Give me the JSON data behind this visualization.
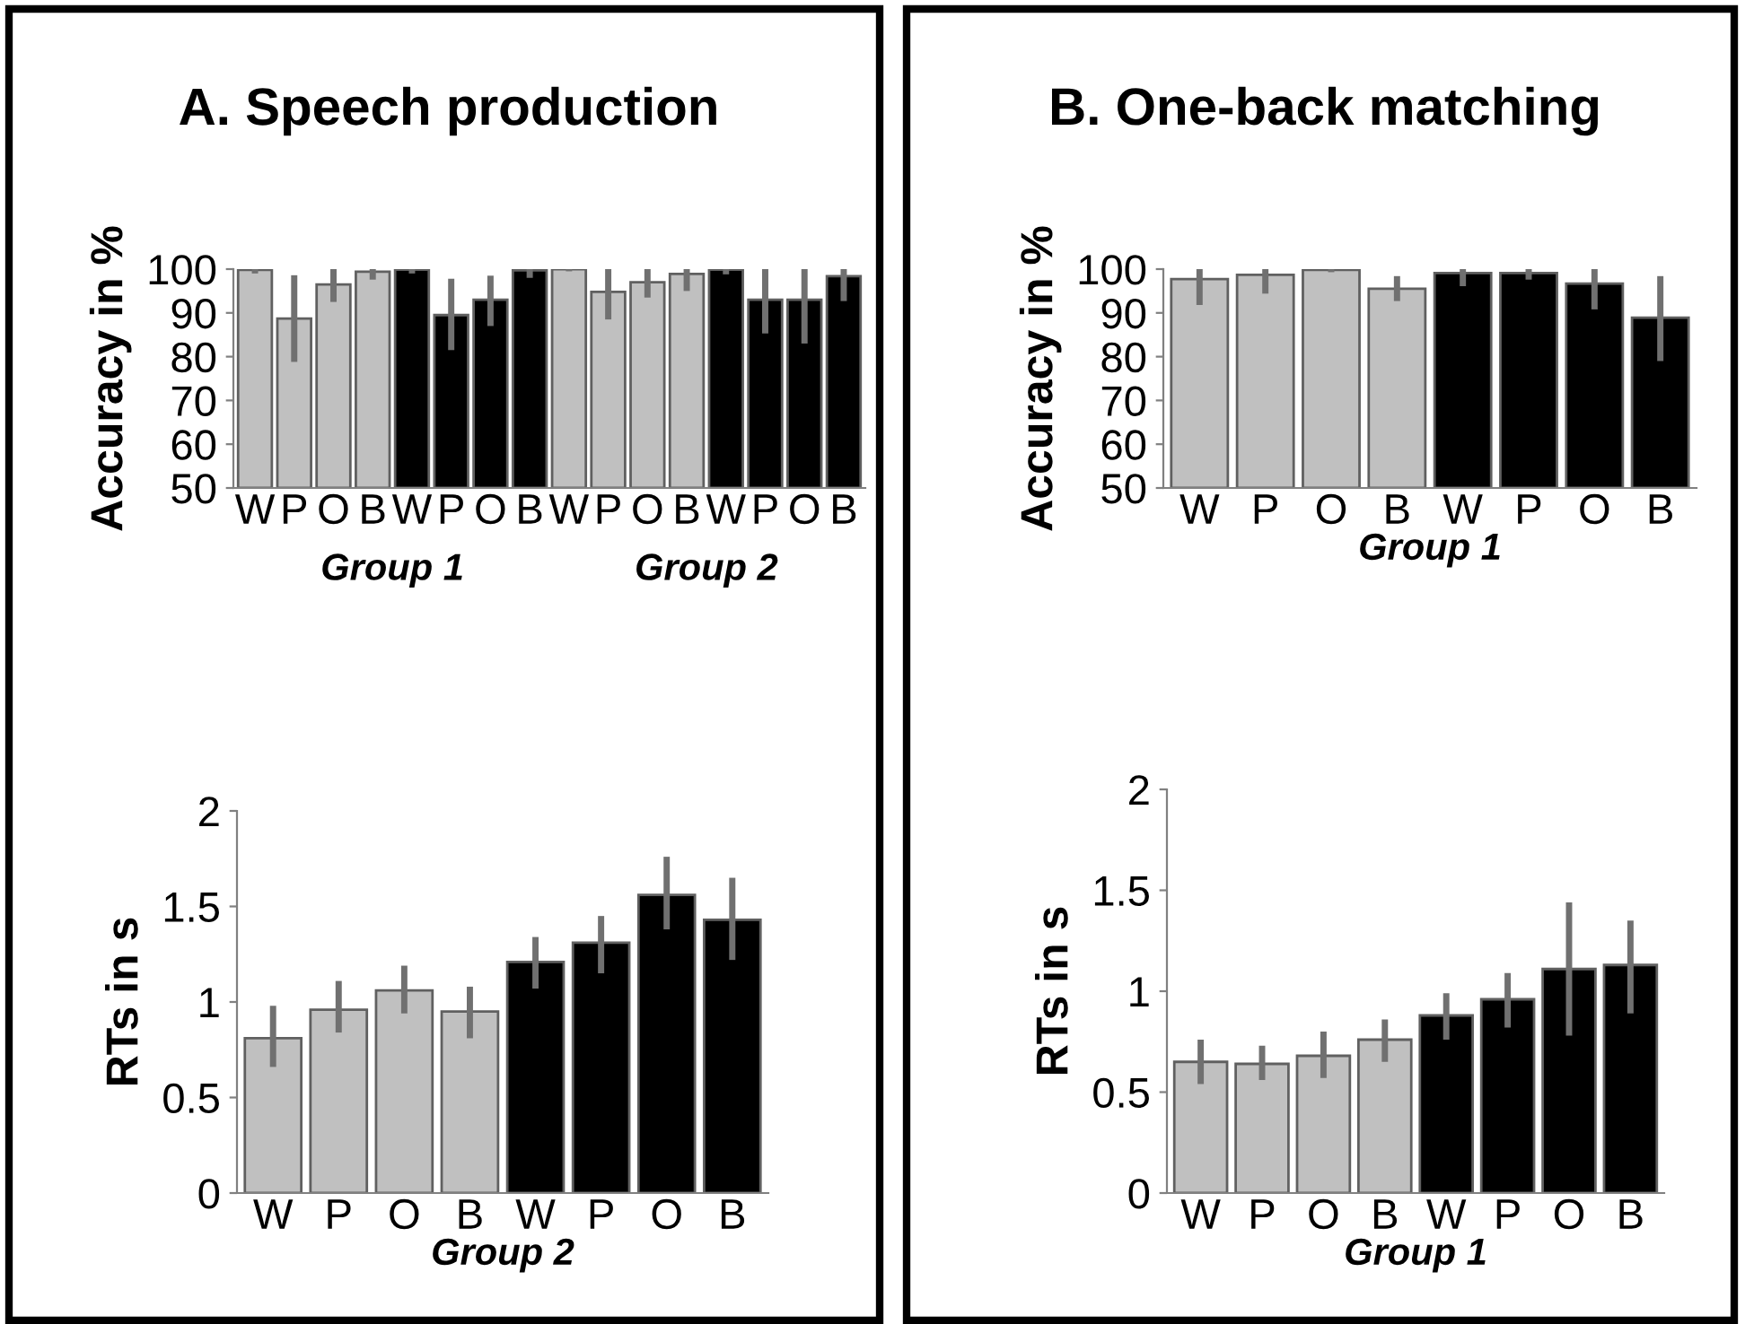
{
  "chart_data": [
    {
      "type": "bar",
      "title": "A. Speech production",
      "ylabel": "Accuracy in %",
      "categories": [
        "W",
        "P",
        "O",
        "B",
        "W",
        "P",
        "O",
        "B",
        "W",
        "P",
        "O",
        "B",
        "W",
        "P",
        "O",
        "B"
      ],
      "values": [
        99.8,
        88.7,
        96.5,
        99.4,
        99.9,
        89.5,
        93,
        99.7,
        100,
        94.8,
        97,
        98.9,
        99.9,
        93,
        93,
        98.4
      ],
      "colors": [
        "#c0c0c0",
        "#c0c0c0",
        "#c0c0c0",
        "#c0c0c0",
        "#000000",
        "#000000",
        "#000000",
        "#000000",
        "#c0c0c0",
        "#c0c0c0",
        "#c0c0c0",
        "#c0c0c0",
        "#000000",
        "#000000",
        "#000000",
        "#000000"
      ],
      "errors": [
        [
          99,
          100
        ],
        [
          78.8,
          98.6
        ],
        [
          92.5,
          100
        ],
        [
          97.6,
          100
        ],
        [
          99,
          100
        ],
        [
          81.5,
          97.8
        ],
        [
          87,
          98.5
        ],
        [
          98,
          100
        ],
        [
          99.5,
          100
        ],
        [
          88.5,
          100
        ],
        [
          93.5,
          100
        ],
        [
          95,
          100
        ],
        [
          98.8,
          100
        ],
        [
          85.3,
          100
        ],
        [
          83,
          100
        ],
        [
          92.7,
          100
        ]
      ],
      "ylim": [
        50,
        100
      ],
      "yticks": [
        50,
        60,
        70,
        80,
        90,
        100
      ],
      "annotations": [
        "Group 1",
        "Group 2"
      ],
      "grid": false,
      "legend": false
    },
    {
      "type": "bar",
      "ylabel": "RTs in s",
      "xlabel": "Group 2",
      "categories": [
        "W",
        "P",
        "O",
        "B",
        "W",
        "P",
        "O",
        "B"
      ],
      "values": [
        0.81,
        0.96,
        1.06,
        0.95,
        1.21,
        1.31,
        1.56,
        1.43
      ],
      "colors": [
        "#c0c0c0",
        "#c0c0c0",
        "#c0c0c0",
        "#c0c0c0",
        "#000000",
        "#000000",
        "#000000",
        "#000000"
      ],
      "errors": [
        [
          0.66,
          0.98
        ],
        [
          0.84,
          1.11
        ],
        [
          0.94,
          1.19
        ],
        [
          0.81,
          1.08
        ],
        [
          1.07,
          1.34
        ],
        [
          1.15,
          1.45
        ],
        [
          1.38,
          1.76
        ],
        [
          1.22,
          1.65
        ]
      ],
      "ylim": [
        0,
        2
      ],
      "yticks": [
        0,
        0.5,
        1,
        1.5,
        2
      ],
      "grid": false,
      "legend": false
    },
    {
      "type": "bar",
      "title": "B. One-back matching",
      "ylabel": "Accuracy in %",
      "xlabel": "Group 1",
      "categories": [
        "W",
        "P",
        "O",
        "B",
        "W",
        "P",
        "O",
        "B"
      ],
      "values": [
        97.7,
        98.7,
        99.8,
        95.5,
        99.1,
        99.1,
        96.7,
        88.9
      ],
      "colors": [
        "#c0c0c0",
        "#c0c0c0",
        "#c0c0c0",
        "#c0c0c0",
        "#000000",
        "#000000",
        "#000000",
        "#000000"
      ],
      "errors": [
        [
          91.8,
          100
        ],
        [
          94.4,
          100
        ],
        [
          99.3,
          100
        ],
        [
          92.7,
          98.4
        ],
        [
          96.1,
          100
        ],
        [
          97.6,
          100
        ],
        [
          90.8,
          100
        ],
        [
          79,
          98.4
        ]
      ],
      "ylim": [
        50,
        100
      ],
      "yticks": [
        50,
        60,
        70,
        80,
        90,
        100
      ],
      "grid": false,
      "legend": false
    },
    {
      "type": "bar",
      "ylabel": "RTs in s",
      "xlabel": "Group 1",
      "categories": [
        "W",
        "P",
        "O",
        "B",
        "W",
        "P",
        "O",
        "B"
      ],
      "values": [
        0.65,
        0.64,
        0.68,
        0.76,
        0.88,
        0.96,
        1.11,
        1.13
      ],
      "colors": [
        "#c0c0c0",
        "#c0c0c0",
        "#c0c0c0",
        "#c0c0c0",
        "#000000",
        "#000000",
        "#000000",
        "#000000"
      ],
      "errors": [
        [
          0.54,
          0.76
        ],
        [
          0.56,
          0.73
        ],
        [
          0.57,
          0.8
        ],
        [
          0.65,
          0.86
        ],
        [
          0.76,
          0.99
        ],
        [
          0.82,
          1.09
        ],
        [
          0.78,
          1.44
        ],
        [
          0.89,
          1.35
        ]
      ],
      "ylim": [
        0,
        2
      ],
      "yticks": [
        0,
        0.5,
        1,
        1.5,
        2
      ],
      "grid": false,
      "legend": false
    }
  ]
}
